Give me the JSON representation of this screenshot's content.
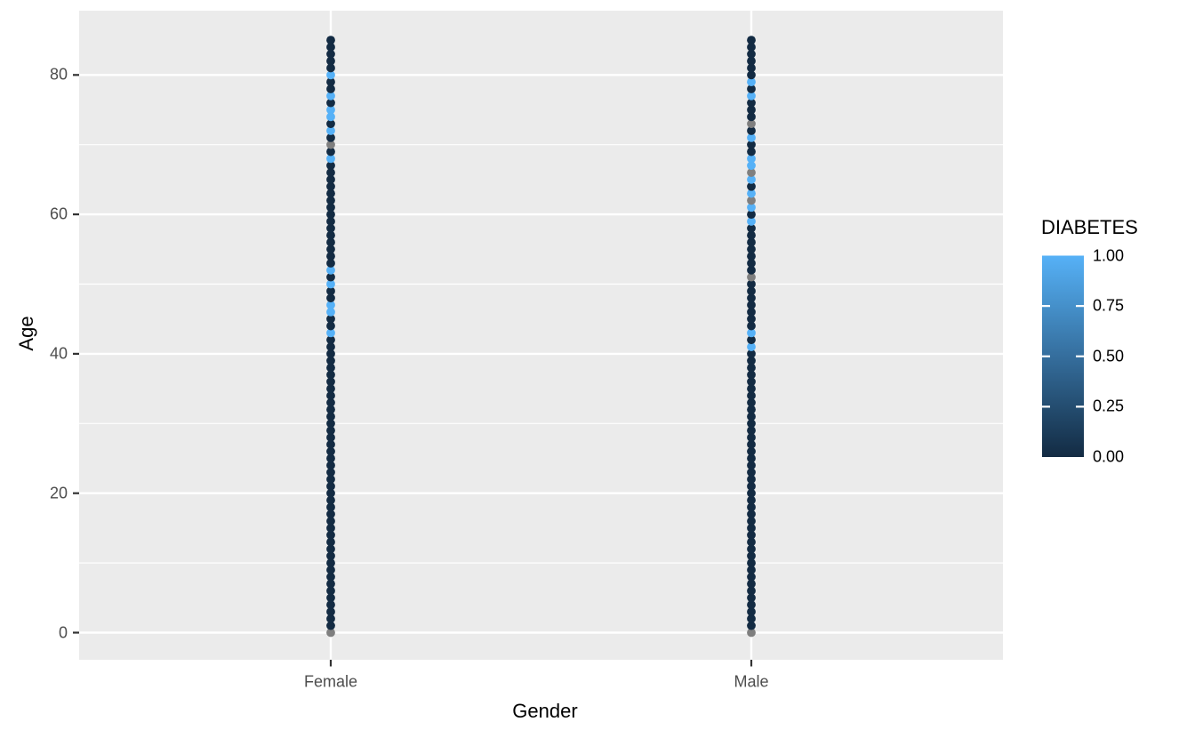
{
  "chart_data": {
    "type": "scatter",
    "title": "",
    "xlabel": "Gender",
    "ylabel": "Age",
    "categories": [
      "Female",
      "Male"
    ],
    "y_axis": {
      "ticks": [
        0,
        20,
        40,
        60,
        80
      ],
      "tick_labels": [
        "0",
        "20",
        "40",
        "60",
        "80"
      ],
      "minor_ticks": [
        10,
        30,
        50,
        70
      ],
      "display_range": [
        -3.9,
        89.2
      ]
    },
    "age_min": 0,
    "age_max": 85,
    "series": [
      {
        "gender": "Female",
        "diabetes_positive_ages": [
          43,
          46,
          47,
          50,
          52,
          68,
          72,
          74,
          75,
          77,
          80
        ],
        "diabetes_na_ages": [
          0,
          70
        ]
      },
      {
        "gender": "Male",
        "diabetes_positive_ages": [
          41,
          43,
          59,
          61,
          63,
          65,
          67,
          68,
          71,
          77,
          79
        ],
        "diabetes_na_ages": [
          0,
          51,
          62,
          66,
          73
        ]
      }
    ],
    "legend": {
      "title": "DIABETES",
      "tick_values": [
        1.0,
        0.75,
        0.5,
        0.25,
        0.0
      ],
      "tick_labels": [
        "1.00",
        "0.75",
        "0.50",
        "0.25",
        "0.00"
      ],
      "gradient_high": "#56B1F7",
      "gradient_low": "#132B43",
      "na_color": "#7F7F7F"
    },
    "colors": {
      "point_value_0": "#132B43",
      "point_value_1": "#56B1F7",
      "point_na": "#7F7F7F",
      "panel_background": "#EBEBEB",
      "gridline": "#FFFFFF",
      "axis_tick_mark": "#333333",
      "axis_tick_text": "#4D4D4D",
      "title_text": "#000000"
    }
  }
}
